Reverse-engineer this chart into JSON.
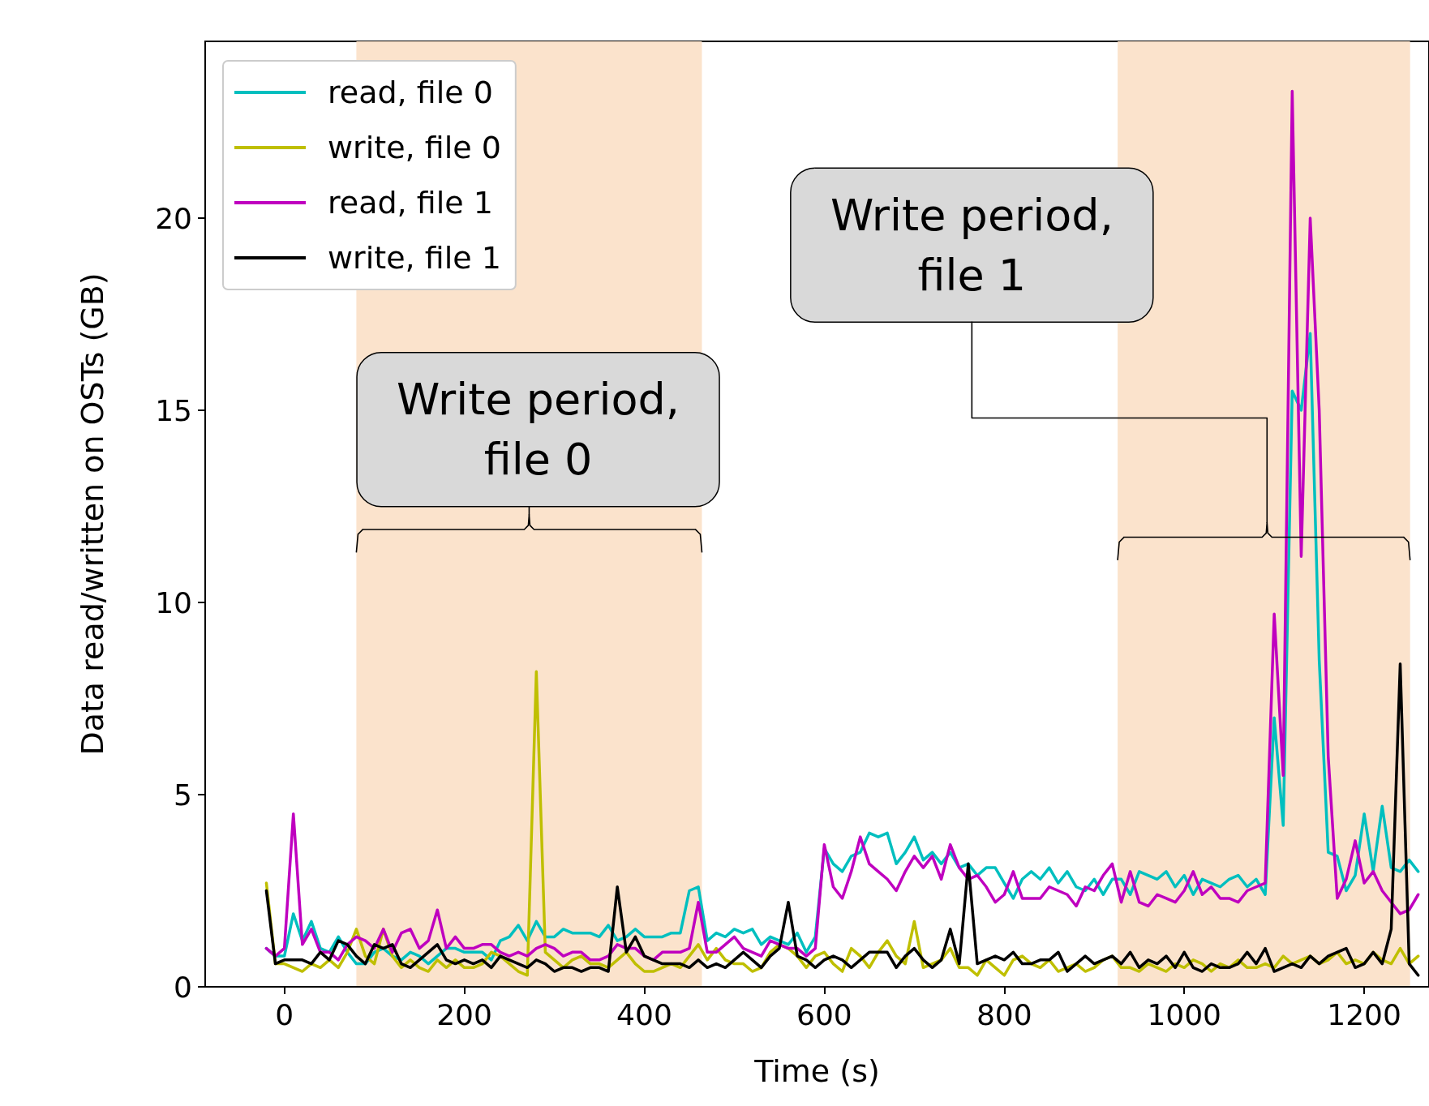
{
  "chart_data": {
    "type": "line",
    "xlabel": "Time (s)",
    "ylabel": "Data read/written on OSTs (GB)",
    "x": [
      -20,
      -10,
      0,
      10,
      20,
      30,
      40,
      50,
      60,
      70,
      80,
      90,
      100,
      110,
      120,
      130,
      140,
      150,
      160,
      170,
      180,
      190,
      200,
      210,
      220,
      230,
      240,
      250,
      260,
      270,
      280,
      290,
      300,
      310,
      320,
      330,
      340,
      350,
      360,
      370,
      380,
      390,
      400,
      410,
      420,
      430,
      440,
      450,
      460,
      470,
      480,
      490,
      500,
      510,
      520,
      530,
      540,
      550,
      560,
      570,
      580,
      590,
      600,
      610,
      620,
      630,
      640,
      650,
      660,
      670,
      680,
      690,
      700,
      710,
      720,
      730,
      740,
      750,
      760,
      770,
      780,
      790,
      800,
      810,
      820,
      830,
      840,
      850,
      860,
      870,
      880,
      890,
      900,
      910,
      920,
      930,
      940,
      950,
      960,
      970,
      980,
      990,
      1000,
      1010,
      1020,
      1030,
      1040,
      1050,
      1060,
      1070,
      1080,
      1090,
      1100,
      1110,
      1120,
      1130,
      1140,
      1150,
      1160,
      1170,
      1180,
      1190,
      1200,
      1210,
      1220,
      1230,
      1240,
      1250,
      1260
    ],
    "series": [
      {
        "name": "read, file 0",
        "color": "#00bfbf",
        "values": [
          1.0,
          0.8,
          0.8,
          1.9,
          1.2,
          1.7,
          1.0,
          0.9,
          1.3,
          0.9,
          0.6,
          0.6,
          0.9,
          1.0,
          0.8,
          0.7,
          0.9,
          0.8,
          0.6,
          0.8,
          1.0,
          1.0,
          0.9,
          0.9,
          0.9,
          0.7,
          1.2,
          1.3,
          1.6,
          1.2,
          1.7,
          1.3,
          1.3,
          1.5,
          1.4,
          1.4,
          1.4,
          1.3,
          1.6,
          1.2,
          1.3,
          1.5,
          1.3,
          1.3,
          1.3,
          1.4,
          1.4,
          2.5,
          2.6,
          1.2,
          1.4,
          1.3,
          1.5,
          1.4,
          1.5,
          1.1,
          1.3,
          1.2,
          1.1,
          1.4,
          0.9,
          1.3,
          3.6,
          3.2,
          3.0,
          3.4,
          3.5,
          4.0,
          3.9,
          4.0,
          3.2,
          3.5,
          3.9,
          3.3,
          3.5,
          3.2,
          3.5,
          3.1,
          3.2,
          2.9,
          3.1,
          3.1,
          2.7,
          2.3,
          2.8,
          3.0,
          2.8,
          3.1,
          2.7,
          3.0,
          2.6,
          2.5,
          2.8,
          2.4,
          2.8,
          2.8,
          2.4,
          3.0,
          2.9,
          2.8,
          3.0,
          2.6,
          2.9,
          2.4,
          2.8,
          2.7,
          2.6,
          2.8,
          2.9,
          2.6,
          2.8,
          2.4,
          7.0,
          4.2,
          15.5,
          15.0,
          17.0,
          8.5,
          3.5,
          3.4,
          2.5,
          2.9,
          4.5,
          3.0,
          4.7,
          3.1,
          3.0,
          3.3,
          3.0
        ]
      },
      {
        "name": "write, file 0",
        "color": "#bfbf00",
        "values": [
          2.7,
          0.6,
          0.6,
          0.5,
          0.4,
          0.6,
          0.5,
          0.7,
          0.5,
          0.9,
          1.5,
          0.8,
          0.6,
          1.5,
          0.8,
          0.5,
          0.7,
          0.5,
          0.4,
          0.7,
          0.5,
          0.7,
          0.5,
          0.5,
          0.6,
          0.9,
          0.8,
          0.6,
          0.4,
          0.3,
          8.2,
          0.9,
          0.7,
          0.5,
          0.7,
          0.8,
          0.6,
          0.6,
          0.5,
          0.7,
          0.9,
          0.6,
          0.4,
          0.4,
          0.5,
          0.6,
          0.5,
          0.8,
          1.1,
          0.7,
          1.0,
          0.7,
          0.6,
          0.6,
          0.4,
          0.5,
          0.9,
          1.1,
          1.0,
          0.8,
          0.5,
          0.8,
          0.9,
          0.6,
          0.4,
          1.0,
          0.8,
          0.5,
          0.9,
          1.2,
          0.8,
          0.6,
          1.7,
          0.5,
          0.6,
          0.7,
          1.0,
          0.5,
          0.5,
          0.3,
          0.7,
          0.5,
          0.3,
          0.7,
          0.8,
          0.6,
          0.5,
          0.7,
          0.4,
          0.5,
          0.6,
          0.4,
          0.5,
          0.7,
          0.8,
          0.5,
          0.5,
          0.4,
          0.6,
          0.5,
          0.4,
          0.6,
          0.5,
          0.7,
          0.6,
          0.4,
          0.6,
          0.5,
          0.7,
          0.5,
          0.5,
          0.6,
          0.5,
          0.8,
          0.6,
          0.7,
          0.8,
          0.6,
          0.7,
          0.9,
          0.6,
          0.7,
          0.6,
          0.9,
          0.7,
          0.6,
          1.0,
          0.6,
          0.8
        ]
      },
      {
        "name": "read, file 1",
        "color": "#bf00bf",
        "values": [
          1.0,
          0.8,
          1.0,
          4.5,
          1.1,
          1.5,
          0.9,
          0.9,
          0.7,
          1.1,
          1.3,
          1.2,
          1.0,
          1.5,
          0.9,
          1.4,
          1.5,
          1.0,
          1.2,
          2.0,
          1.0,
          1.3,
          1.0,
          1.0,
          1.1,
          1.1,
          0.9,
          0.8,
          0.9,
          0.8,
          1.0,
          1.1,
          1.0,
          0.8,
          0.9,
          0.9,
          0.7,
          0.7,
          0.8,
          1.1,
          1.0,
          1.0,
          0.8,
          0.7,
          0.9,
          0.9,
          0.9,
          1.0,
          2.2,
          0.9,
          0.9,
          1.1,
          1.3,
          1.0,
          0.9,
          0.8,
          1.2,
          1.1,
          1.0,
          1.0,
          0.8,
          1.0,
          3.7,
          2.6,
          2.3,
          3.0,
          3.9,
          3.2,
          3.0,
          2.8,
          2.5,
          3.0,
          3.4,
          3.1,
          3.4,
          2.8,
          3.7,
          3.1,
          2.8,
          2.9,
          2.6,
          2.2,
          2.4,
          3.0,
          2.3,
          2.3,
          2.3,
          2.6,
          2.5,
          2.4,
          2.1,
          2.6,
          2.5,
          2.9,
          3.2,
          2.2,
          3.0,
          2.2,
          2.1,
          2.4,
          2.3,
          2.2,
          2.5,
          3.0,
          2.4,
          2.6,
          2.3,
          2.3,
          2.2,
          2.5,
          2.6,
          2.7,
          9.7,
          5.5,
          23.3,
          11.2,
          20.0,
          15.0,
          6.0,
          2.3,
          2.8,
          3.8,
          2.7,
          3.0,
          2.5,
          2.2,
          1.9,
          2.0,
          2.4
        ]
      },
      {
        "name": "write, file 1",
        "color": "#000000",
        "values": [
          2.5,
          0.6,
          0.7,
          0.7,
          0.7,
          0.6,
          0.9,
          0.7,
          1.2,
          1.1,
          0.8,
          0.6,
          1.1,
          1.0,
          1.1,
          0.6,
          0.5,
          0.7,
          0.9,
          1.1,
          0.7,
          0.6,
          0.7,
          0.6,
          0.7,
          0.5,
          0.8,
          0.7,
          0.6,
          0.5,
          0.7,
          0.6,
          0.4,
          0.5,
          0.5,
          0.4,
          0.5,
          0.5,
          0.4,
          2.6,
          0.9,
          1.3,
          0.8,
          0.7,
          0.6,
          0.6,
          0.6,
          0.5,
          0.7,
          0.5,
          0.6,
          0.5,
          0.7,
          0.9,
          0.7,
          0.5,
          0.8,
          1.0,
          2.2,
          0.8,
          0.7,
          0.5,
          0.7,
          0.8,
          0.7,
          0.5,
          0.7,
          0.9,
          0.9,
          0.9,
          0.5,
          0.8,
          1.0,
          0.7,
          0.5,
          0.7,
          1.5,
          0.6,
          3.2,
          0.6,
          0.7,
          0.8,
          0.7,
          0.9,
          0.6,
          0.6,
          0.7,
          0.7,
          0.9,
          0.4,
          0.6,
          0.8,
          0.6,
          0.7,
          0.8,
          0.6,
          0.9,
          0.5,
          0.7,
          0.6,
          0.8,
          0.5,
          0.9,
          0.5,
          0.4,
          0.6,
          0.5,
          0.5,
          0.6,
          0.9,
          0.6,
          1.0,
          0.4,
          0.5,
          0.6,
          0.5,
          0.8,
          0.6,
          0.8,
          0.9,
          1.0,
          0.5,
          0.6,
          0.9,
          0.6,
          1.5,
          8.4,
          0.6,
          0.3
        ]
      }
    ],
    "xlim": [
      -88,
      1272
    ],
    "xticks": [
      0,
      200,
      400,
      600,
      800,
      1000,
      1200
    ],
    "ylim": [
      0,
      24.6
    ],
    "yticks": [
      0,
      5,
      10,
      15,
      20
    ],
    "grid": false,
    "legend": "top left",
    "marker": "none",
    "line_style": "solid",
    "bands": [
      {
        "axis": "x",
        "from": 80,
        "to": 464,
        "color": "#fbe3cc"
      },
      {
        "axis": "x",
        "from": 926,
        "to": 1251,
        "color": "#fbe3cc"
      }
    ],
    "annotations": [
      "Write period,\nfile 0",
      "Write period,\nfile 1"
    ]
  }
}
